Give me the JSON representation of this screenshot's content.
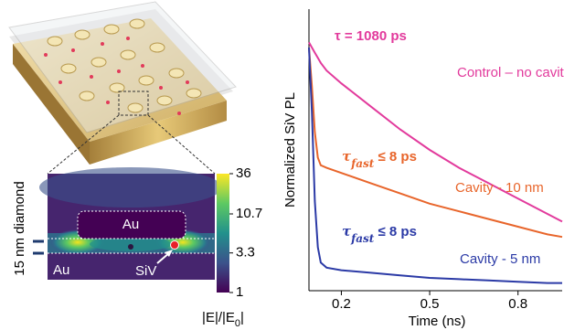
{
  "chart_data": [
    {
      "type": "heatmap",
      "side_label": "15 nm diamond",
      "regions": [
        "Au",
        "Au"
      ],
      "emitter_label": "SiV",
      "colorbar": {
        "lim": [
          1,
          36
        ],
        "log": true,
        "ticks": [
          1,
          3.3,
          10.7,
          36
        ],
        "label": "|E|/|E",
        "label_subscript": "0",
        "label_end": "|"
      }
    },
    {
      "type": "line",
      "ylabel": "Normalized SiV PL",
      "xlabel": "Time (ns)",
      "xlim": [
        0.09,
        0.95
      ],
      "xticks": [
        0.2,
        0.5,
        0.8
      ],
      "ylim": [
        0,
        1.1
      ],
      "x": [
        0.09,
        0.1,
        0.11,
        0.12,
        0.13,
        0.15,
        0.2,
        0.3,
        0.4,
        0.5,
        0.6,
        0.7,
        0.8,
        0.9,
        0.95
      ],
      "series": [
        {
          "name": "Control – no cavity",
          "color": "#e23a9c",
          "values": [
            0.97,
            0.95,
            0.93,
            0.91,
            0.89,
            0.86,
            0.81,
            0.72,
            0.63,
            0.55,
            0.48,
            0.42,
            0.36,
            0.3,
            0.27
          ]
        },
        {
          "name": "Cavity - 10 nm",
          "color": "#e8652b",
          "values": [
            0.95,
            0.8,
            0.62,
            0.52,
            0.49,
            0.48,
            0.46,
            0.42,
            0.38,
            0.34,
            0.31,
            0.28,
            0.25,
            0.22,
            0.21
          ]
        },
        {
          "name": "Cavity - 5 nm",
          "color": "#2b3aa6",
          "values": [
            0.95,
            0.7,
            0.35,
            0.17,
            0.11,
            0.09,
            0.08,
            0.07,
            0.06,
            0.05,
            0.045,
            0.04,
            0.035,
            0.03,
            0.03
          ]
        }
      ],
      "annotations": [
        {
          "text": "τ = 1080 ps",
          "color": "#e23a9c"
        },
        {
          "symbol": "τ",
          "subscript": "fast",
          "text": " ≤ 8 ps",
          "color": "#e8652b"
        },
        {
          "symbol": "τ",
          "subscript": "fast",
          "text": " ≤ 8 ps",
          "color": "#2b3aa6"
        }
      ]
    }
  ]
}
